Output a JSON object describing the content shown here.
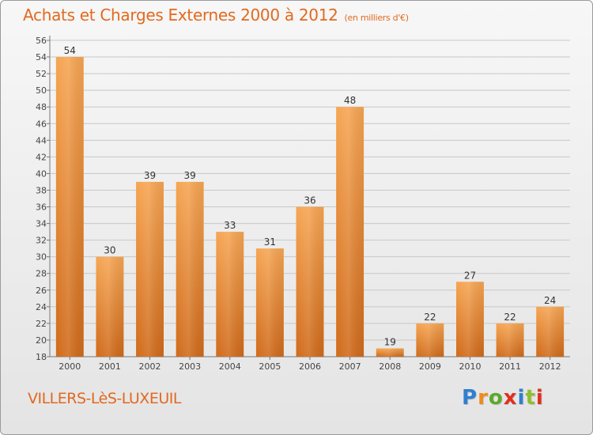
{
  "title": "Achats et Charges Externes 2000 à 2012",
  "subtitle": "(en milliers d'€)",
  "commune": "VILLERS-LèS-LUXEUIL",
  "logo": {
    "letters": [
      "P",
      "r",
      "o",
      "x",
      "i",
      "t",
      "i"
    ],
    "colors": [
      "#2f7fd0",
      "#f08a1a",
      "#5aaa2b",
      "#e0301e",
      "#2f7fd0",
      "#8fbe32",
      "#e0301e"
    ]
  },
  "colors": {
    "accent": "#e2691f",
    "bar_top": "#f6a552",
    "bar_bottom": "#d06a1a",
    "grid": "#c8c8c8"
  },
  "chart_data": {
    "type": "bar",
    "categories": [
      "2000",
      "2001",
      "2002",
      "2003",
      "2004",
      "2005",
      "2006",
      "2007",
      "2008",
      "2009",
      "2010",
      "2011",
      "2012"
    ],
    "values": [
      54,
      30,
      39,
      39,
      33,
      31,
      36,
      48,
      19,
      22,
      27,
      22,
      24
    ],
    "data_labels": [
      "54",
      "30",
      "39",
      "39",
      "33",
      "31",
      "36",
      "48",
      "19",
      "22",
      "27",
      "22",
      "24"
    ],
    "ylim": [
      18,
      56
    ],
    "yticks": [
      "18",
      "20",
      "22",
      "24",
      "26",
      "28",
      "30",
      "32",
      "34",
      "36",
      "38",
      "40",
      "42",
      "44",
      "46",
      "48",
      "50",
      "52",
      "54",
      "56"
    ],
    "grid": true,
    "legend": "none"
  }
}
